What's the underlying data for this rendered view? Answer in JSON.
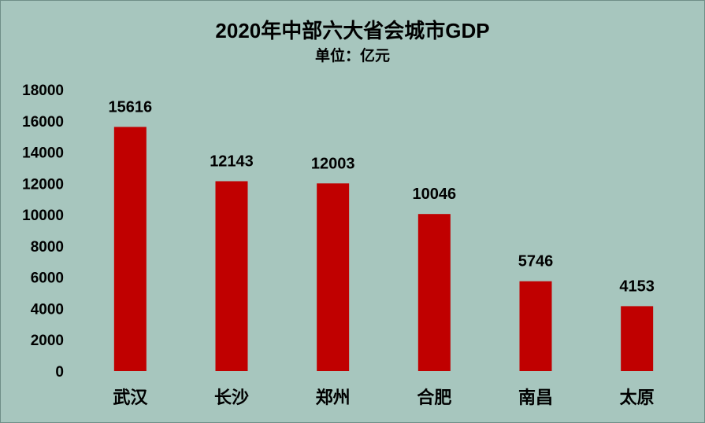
{
  "chart_data": {
    "type": "bar",
    "title": "2020年中部六大省会城市GDP",
    "subtitle": "单位：亿元",
    "categories": [
      "武汉",
      "长沙",
      "郑州",
      "合肥",
      "南昌",
      "太原"
    ],
    "values": [
      15616,
      12143,
      12003,
      10046,
      5746,
      4153
    ],
    "data_labels": [
      "15616",
      "12143",
      "12003",
      "10046",
      "5746",
      "4153"
    ],
    "y_ticks": [
      "0",
      "2000",
      "4000",
      "6000",
      "8000",
      "10000",
      "12000",
      "14000",
      "16000",
      "18000"
    ],
    "ylim": [
      0,
      18000
    ],
    "xlabel": "",
    "ylabel": "",
    "grid": false,
    "legend": "none",
    "colors": {
      "bar": "#c00000",
      "background": "#a7c6be",
      "border": "#6f8f88",
      "text": "#000000"
    }
  }
}
